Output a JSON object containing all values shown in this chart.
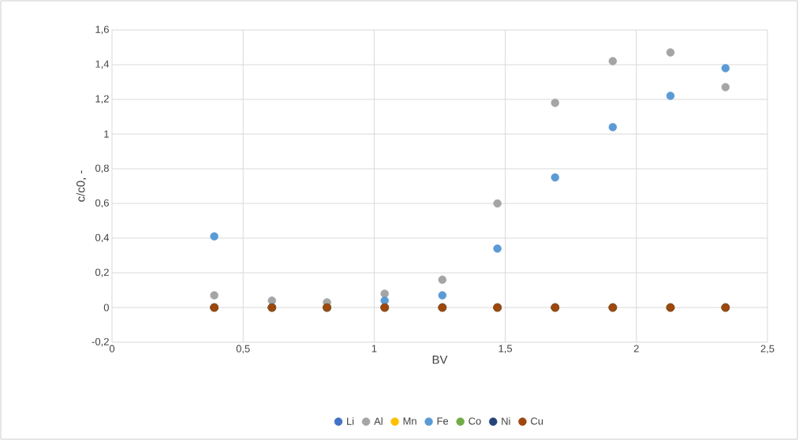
{
  "chart_data": {
    "type": "scatter",
    "xlabel": "BV",
    "ylabel": "c/c0, -",
    "x": [
      0.39,
      0.61,
      0.82,
      1.04,
      1.26,
      1.47,
      1.69,
      1.91,
      2.13,
      2.34
    ],
    "series": [
      {
        "name": "Li",
        "color": "#4472c4",
        "values": [
          0,
          0,
          0,
          0,
          0,
          0,
          0,
          0,
          0,
          0
        ]
      },
      {
        "name": "Al",
        "color": "#a5a5a5",
        "values": [
          0.07,
          0.04,
          0.03,
          0.08,
          0.16,
          0.6,
          1.18,
          1.42,
          1.47,
          1.27
        ]
      },
      {
        "name": "Mn",
        "color": "#ffc000",
        "values": [
          0,
          0,
          0,
          0,
          0,
          0,
          0,
          0,
          0,
          0
        ]
      },
      {
        "name": "Fe",
        "color": "#5b9bd5",
        "values": [
          0.41,
          0,
          0,
          0.04,
          0.07,
          0.34,
          0.75,
          1.04,
          1.22,
          1.38
        ]
      },
      {
        "name": "Co",
        "color": "#70ad47",
        "values": [
          0,
          0,
          0,
          0,
          0,
          0,
          0,
          0,
          0,
          0
        ]
      },
      {
        "name": "Ni",
        "color": "#264478",
        "values": [
          0,
          0,
          0,
          0,
          0,
          0,
          0,
          0,
          0,
          0
        ]
      },
      {
        "name": "Cu",
        "color": "#9e480e",
        "values": [
          0,
          0,
          0,
          0,
          0,
          0,
          0,
          0,
          0,
          0
        ]
      }
    ],
    "xlim": [
      0,
      2.5
    ],
    "ylim": [
      -0.2,
      1.6
    ],
    "xticks": [
      0,
      {
        "value": 0.5,
        "label": "0,5"
      },
      1,
      {
        "value": 1.5,
        "label": "1,5"
      },
      2,
      {
        "value": 2.5,
        "label": "2,5"
      }
    ],
    "yticks": [
      {
        "value": -0.2,
        "label": "-0,2"
      },
      0,
      {
        "value": 0.2,
        "label": "0,2"
      },
      {
        "value": 0.4,
        "label": "0,4"
      },
      {
        "value": 0.6,
        "label": "0,6"
      },
      {
        "value": 0.8,
        "label": "0,8"
      },
      1,
      {
        "value": 1.2,
        "label": "1,2"
      },
      {
        "value": 1.4,
        "label": "1,4"
      },
      {
        "value": 1.6,
        "label": "1,6"
      }
    ],
    "grid": true,
    "legend": "bottom",
    "marker": "circle"
  }
}
